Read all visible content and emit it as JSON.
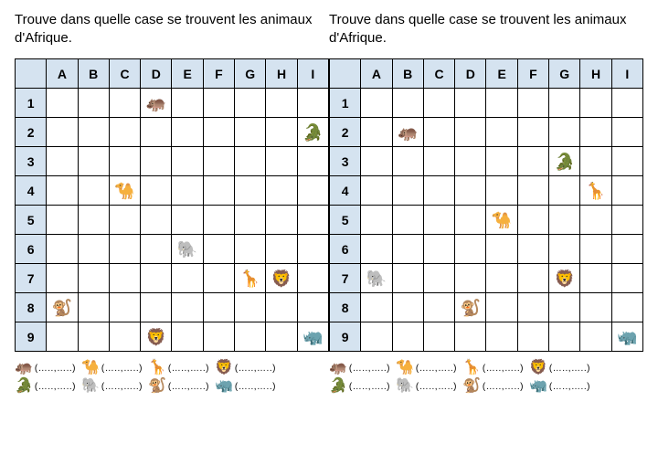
{
  "colors": {
    "header_bg": "#d5e3f0",
    "grid_border": "#000000",
    "text": "#000000",
    "page_bg": "#ffffff"
  },
  "typography": {
    "instruction_font": "Comic Sans MS",
    "instruction_size_pt": 12,
    "grid_font": "Arial",
    "grid_size_pt": 11
  },
  "instruction": "Trouve dans quelle case se trouvent les animaux d'Afrique.",
  "columns": [
    "A",
    "B",
    "C",
    "D",
    "E",
    "F",
    "G",
    "H",
    "I"
  ],
  "rows": [
    "1",
    "2",
    "3",
    "4",
    "5",
    "6",
    "7",
    "8",
    "9"
  ],
  "blank_template": "(…..,…..)",
  "animals": {
    "hippo": "🦛",
    "crocodile": "🐊",
    "camel": "🐪",
    "elephant": "🐘",
    "giraffe": "🦒",
    "lion": "🦁",
    "monkey": "🐒",
    "rhino": "🦏"
  },
  "left_grid": {
    "placements": [
      {
        "row": 1,
        "col": "D",
        "animal": "hippo"
      },
      {
        "row": 2,
        "col": "I",
        "animal": "crocodile"
      },
      {
        "row": 4,
        "col": "C",
        "animal": "camel"
      },
      {
        "row": 6,
        "col": "E",
        "animal": "elephant"
      },
      {
        "row": 7,
        "col": "G",
        "animal": "giraffe"
      },
      {
        "row": 7,
        "col": "H",
        "animal": "lion"
      },
      {
        "row": 8,
        "col": "A",
        "animal": "monkey"
      },
      {
        "row": 9,
        "col": "D",
        "animal": "lion"
      },
      {
        "row": 9,
        "col": "I",
        "animal": "rhino"
      }
    ]
  },
  "right_grid": {
    "placements": [
      {
        "row": 2,
        "col": "B",
        "animal": "hippo"
      },
      {
        "row": 3,
        "col": "G",
        "animal": "crocodile"
      },
      {
        "row": 4,
        "col": "H",
        "animal": "giraffe"
      },
      {
        "row": 5,
        "col": "E",
        "animal": "camel"
      },
      {
        "row": 7,
        "col": "A",
        "animal": "elephant"
      },
      {
        "row": 7,
        "col": "G",
        "animal": "lion"
      },
      {
        "row": 8,
        "col": "D",
        "animal": "monkey"
      },
      {
        "row": 9,
        "col": "I",
        "animal": "rhino"
      }
    ]
  },
  "answer_rows": [
    [
      "hippo",
      "camel",
      "giraffe",
      "lion"
    ],
    [
      "crocodile",
      "elephant",
      "monkey",
      "rhino"
    ]
  ]
}
